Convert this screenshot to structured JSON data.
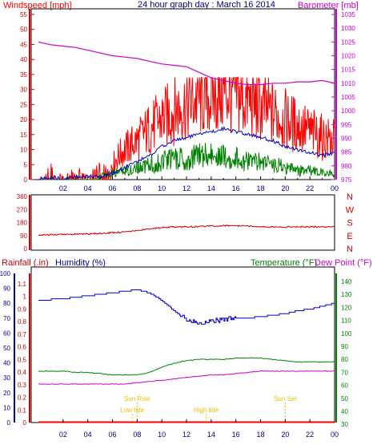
{
  "chart_data": [
    {
      "type": "line",
      "title": "24 hour graph day : March 16 2014",
      "left_label": "Windspeed [mph]",
      "right_label": "Barometer [mb]",
      "x_ticks": [
        "02",
        "04",
        "06",
        "08",
        "10",
        "12",
        "14",
        "16",
        "18",
        "20",
        "22",
        "00"
      ],
      "left_ticks": [
        "0",
        "5",
        "10",
        "15",
        "20",
        "25",
        "30",
        "35",
        "40",
        "45",
        "50",
        "55"
      ],
      "right_ticks": [
        "975",
        "980",
        "985",
        "990",
        "995",
        "1000",
        "1005",
        "1010",
        "1015",
        "1020",
        "1025",
        "1030",
        "1035"
      ],
      "left_range": [
        0,
        55
      ],
      "right_range": [
        975,
        1035
      ],
      "colors": {
        "gust": "#ff0000",
        "avg": "#0000cc",
        "wind": "#008000",
        "baro": "#cc00cc",
        "title": "#000080"
      },
      "series": [
        {
          "axis": "left",
          "points": [
            [
              0,
              0
            ],
            [
              0.5,
              0
            ],
            [
              1,
              3
            ],
            [
              2,
              0
            ],
            [
              3,
              2
            ],
            [
              4,
              1
            ],
            [
              5,
              3
            ],
            [
              6,
              5
            ],
            [
              6.5,
              8
            ],
            [
              7,
              10
            ],
            [
              8,
              13
            ],
            [
              9,
              17
            ],
            [
              10,
              20
            ],
            [
              11,
              23
            ],
            [
              12,
              25
            ],
            [
              13,
              27
            ],
            [
              14,
              28
            ],
            [
              15,
              29
            ],
            [
              16,
              28
            ],
            [
              17,
              26
            ],
            [
              18,
              24
            ],
            [
              19,
              22
            ],
            [
              20,
              20
            ],
            [
              21,
              18
            ],
            [
              22,
              16
            ],
            [
              23,
              14
            ],
            [
              24,
              13
            ]
          ]
        },
        {
          "axis": "left",
          "points": [
            [
              0,
              0
            ],
            [
              1,
              1
            ],
            [
              2,
              0
            ],
            [
              3,
              1
            ],
            [
              4,
              1
            ],
            [
              5,
              1
            ],
            [
              6,
              2
            ],
            [
              7,
              4
            ],
            [
              8,
              6
            ],
            [
              9,
              8
            ],
            [
              10,
              11
            ],
            [
              11,
              13
            ],
            [
              12,
              14
            ],
            [
              13,
              15
            ],
            [
              14,
              16
            ],
            [
              15,
              17
            ],
            [
              16,
              16
            ],
            [
              17,
              15
            ],
            [
              18,
              14
            ],
            [
              19,
              13
            ],
            [
              20,
              11
            ],
            [
              21,
              10
            ],
            [
              22,
              9
            ],
            [
              23,
              8
            ],
            [
              24,
              9
            ]
          ]
        },
        {
          "axis": "left",
          "points": [
            [
              0,
              0
            ],
            [
              1,
              0
            ],
            [
              2,
              0
            ],
            [
              3,
              0
            ],
            [
              4,
              0
            ],
            [
              5,
              1
            ],
            [
              6,
              2
            ],
            [
              7,
              3
            ],
            [
              8,
              4
            ],
            [
              9,
              5
            ],
            [
              10,
              6
            ],
            [
              11,
              7
            ],
            [
              12,
              7
            ],
            [
              13,
              8
            ],
            [
              14,
              8
            ],
            [
              15,
              8
            ],
            [
              16,
              7
            ],
            [
              17,
              6
            ],
            [
              18,
              6
            ],
            [
              19,
              5
            ],
            [
              20,
              4
            ],
            [
              21,
              3
            ],
            [
              22,
              3
            ],
            [
              23,
              2
            ],
            [
              24,
              2
            ]
          ]
        },
        {
          "axis": "right",
          "points": [
            [
              0,
              1025
            ],
            [
              1,
              1024
            ],
            [
              2,
              1023.5
            ],
            [
              3,
              1023
            ],
            [
              4,
              1022
            ],
            [
              5,
              1021
            ],
            [
              6,
              1020
            ],
            [
              7,
              1019.5
            ],
            [
              8,
              1019
            ],
            [
              9,
              1018
            ],
            [
              10,
              1017
            ],
            [
              11,
              1016.5
            ],
            [
              12,
              1016
            ],
            [
              13,
              1014
            ],
            [
              14,
              1012
            ],
            [
              15,
              1011
            ],
            [
              16,
              1010
            ],
            [
              17,
              1009.5
            ],
            [
              18,
              1009.5
            ],
            [
              19,
              1010
            ],
            [
              20,
              1010
            ],
            [
              21,
              1010.5
            ],
            [
              22,
              1010.5
            ],
            [
              23,
              1011
            ],
            [
              24,
              1010
            ]
          ]
        }
      ]
    },
    {
      "type": "line",
      "title": "",
      "left_ticks": [
        "0",
        "90",
        "180",
        "270",
        "360"
      ],
      "right_ticks": [
        "N",
        "W",
        "S",
        "E",
        "N"
      ],
      "left_range": [
        0,
        360
      ],
      "colors": {
        "dir": "#cc0000"
      },
      "series": [
        {
          "axis": "left",
          "points": [
            [
              0,
              90
            ],
            [
              1,
              95
            ],
            [
              2,
              98
            ],
            [
              3,
              100
            ],
            [
              4,
              100
            ],
            [
              5,
              105
            ],
            [
              6,
              110
            ],
            [
              7,
              115
            ],
            [
              8,
              125
            ],
            [
              9,
              135
            ],
            [
              10,
              145
            ],
            [
              11,
              150
            ],
            [
              12,
              150
            ],
            [
              13,
              152
            ],
            [
              14,
              155
            ],
            [
              15,
              158
            ],
            [
              16,
              158
            ],
            [
              17,
              155
            ],
            [
              18,
              152
            ],
            [
              19,
              150
            ],
            [
              20,
              150
            ],
            [
              21,
              150
            ],
            [
              22,
              150
            ],
            [
              23,
              150
            ],
            [
              24,
              150
            ]
          ]
        }
      ]
    },
    {
      "type": "line",
      "title": "",
      "labels": {
        "rain": "Rainfall (.in)",
        "hum": "Humidity (%)",
        "temp": "Temperature (°F)",
        "dew": "Dew Point (°F)"
      },
      "humidity_ticks": [
        "0",
        "10",
        "20",
        "30",
        "40",
        "50",
        "60",
        "70",
        "80",
        "90",
        "100"
      ],
      "rain_ticks": [
        "0",
        "0.1",
        "0.2",
        "0.3",
        "0.4",
        "0.5",
        "0.6",
        "0.7",
        "0.8",
        "0.9",
        "1",
        "1.1"
      ],
      "temp_ticks": [
        "30",
        "40",
        "50",
        "60",
        "70",
        "80",
        "90",
        "100",
        "110",
        "120",
        "130",
        "140"
      ],
      "x_ticks": [
        "02",
        "04",
        "06",
        "08",
        "10",
        "12",
        "14",
        "16",
        "18",
        "20",
        "22",
        "00"
      ],
      "ranges": {
        "humidity": [
          0,
          100
        ],
        "rain": [
          0,
          1.1
        ],
        "temp": [
          30,
          145
        ]
      },
      "colors": {
        "hum": "#0000cc",
        "temp": "#008000",
        "dew": "#cc00cc",
        "rain": "#ff0000",
        "ann": "#e8c000"
      },
      "series": [
        {
          "axis": "humidity",
          "points": [
            [
              0,
              82
            ],
            [
              2,
              83
            ],
            [
              3,
              84
            ],
            [
              4,
              85
            ],
            [
              5,
              86
            ],
            [
              6,
              87
            ],
            [
              7,
              88
            ],
            [
              8,
              89
            ],
            [
              9,
              87
            ],
            [
              10,
              82
            ],
            [
              11,
              75
            ],
            [
              12,
              69
            ],
            [
              13,
              67
            ],
            [
              14,
              68
            ],
            [
              15,
              69
            ],
            [
              16,
              70
            ],
            [
              17,
              70
            ],
            [
              18,
              71
            ],
            [
              19,
              72
            ],
            [
              20,
              73
            ],
            [
              21,
              75
            ],
            [
              22,
              76
            ],
            [
              23,
              78
            ],
            [
              24,
              80
            ]
          ]
        },
        {
          "axis": "temp",
          "points": [
            [
              0,
              71
            ],
            [
              2,
              71
            ],
            [
              3,
              70
            ],
            [
              4,
              70
            ],
            [
              5,
              69
            ],
            [
              6,
              68
            ],
            [
              7,
              68
            ],
            [
              8,
              68
            ],
            [
              9,
              70
            ],
            [
              10,
              74
            ],
            [
              11,
              77
            ],
            [
              12,
              79
            ],
            [
              13,
              80
            ],
            [
              14,
              80
            ],
            [
              15,
              80
            ],
            [
              16,
              81
            ],
            [
              17,
              81
            ],
            [
              18,
              81
            ],
            [
              19,
              80
            ],
            [
              20,
              79
            ],
            [
              21,
              78
            ],
            [
              22,
              78
            ],
            [
              23,
              78
            ],
            [
              24,
              78
            ]
          ]
        },
        {
          "axis": "temp",
          "points": [
            [
              0,
              61
            ],
            [
              2,
              61
            ],
            [
              3,
              61
            ],
            [
              4,
              61
            ],
            [
              5,
              61
            ],
            [
              6,
              61
            ],
            [
              7,
              61
            ],
            [
              8,
              62
            ],
            [
              9,
              63
            ],
            [
              10,
              64
            ],
            [
              11,
              65
            ],
            [
              12,
              66
            ],
            [
              13,
              67
            ],
            [
              14,
              68
            ],
            [
              15,
              68
            ],
            [
              16,
              69
            ],
            [
              17,
              70
            ],
            [
              18,
              71
            ],
            [
              19,
              71
            ],
            [
              20,
              71
            ],
            [
              21,
              71
            ],
            [
              22,
              71
            ],
            [
              23,
              71
            ],
            [
              24,
              71
            ]
          ]
        },
        {
          "axis": "rain",
          "points": [
            [
              0,
              0
            ],
            [
              24,
              0
            ]
          ]
        }
      ],
      "annotations": [
        {
          "text": "Low tide",
          "hour": 7.6,
          "row": 2
        },
        {
          "text": "Sun Rise",
          "hour": 8.0,
          "row": 1
        },
        {
          "text": "High tide",
          "hour": 13.6,
          "row": 2
        },
        {
          "text": "Sun Set",
          "hour": 20.0,
          "row": 1
        }
      ]
    }
  ]
}
